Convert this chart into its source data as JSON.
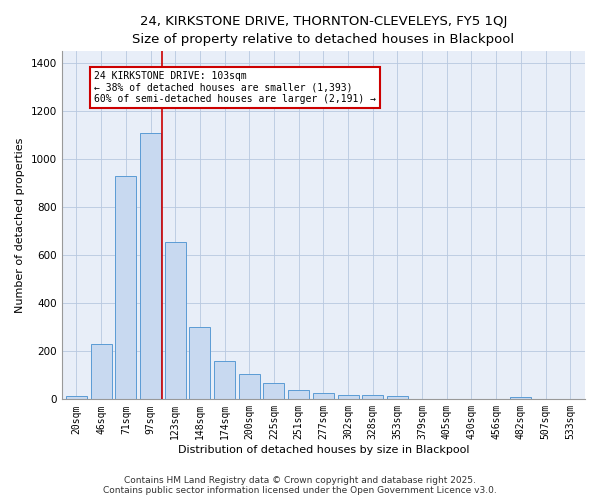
{
  "title_line1": "24, KIRKSTONE DRIVE, THORNTON-CLEVELEYS, FY5 1QJ",
  "title_line2": "Size of property relative to detached houses in Blackpool",
  "xlabel": "Distribution of detached houses by size in Blackpool",
  "ylabel": "Number of detached properties",
  "categories": [
    "20sqm",
    "46sqm",
    "71sqm",
    "97sqm",
    "123sqm",
    "148sqm",
    "174sqm",
    "200sqm",
    "225sqm",
    "251sqm",
    "277sqm",
    "302sqm",
    "328sqm",
    "353sqm",
    "379sqm",
    "405sqm",
    "430sqm",
    "456sqm",
    "482sqm",
    "507sqm",
    "533sqm"
  ],
  "values": [
    15,
    230,
    930,
    1110,
    655,
    300,
    158,
    105,
    70,
    38,
    25,
    20,
    18,
    15,
    0,
    0,
    0,
    0,
    8,
    0,
    0
  ],
  "bar_color": "#c8d9f0",
  "bar_edge_color": "#5b9bd5",
  "bar_width": 0.85,
  "vline_x": 3.48,
  "vline_color": "#cc0000",
  "annotation_text_line1": "24 KIRKSTONE DRIVE: 103sqm",
  "annotation_text_line2": "← 38% of detached houses are smaller (1,393)",
  "annotation_text_line3": "60% of semi-detached houses are larger (2,191) →",
  "annotation_box_color": "#cc0000",
  "annotation_bg": "#ffffff",
  "ylim": [
    0,
    1450
  ],
  "yticks": [
    0,
    200,
    400,
    600,
    800,
    1000,
    1200,
    1400
  ],
  "bg_color": "#e8eef8",
  "footer_line1": "Contains HM Land Registry data © Crown copyright and database right 2025.",
  "footer_line2": "Contains public sector information licensed under the Open Government Licence v3.0.",
  "title_fontsize": 9.5,
  "subtitle_fontsize": 8.5,
  "axis_label_fontsize": 8,
  "tick_fontsize": 7,
  "footer_fontsize": 6.5,
  "ann_fontsize": 7
}
